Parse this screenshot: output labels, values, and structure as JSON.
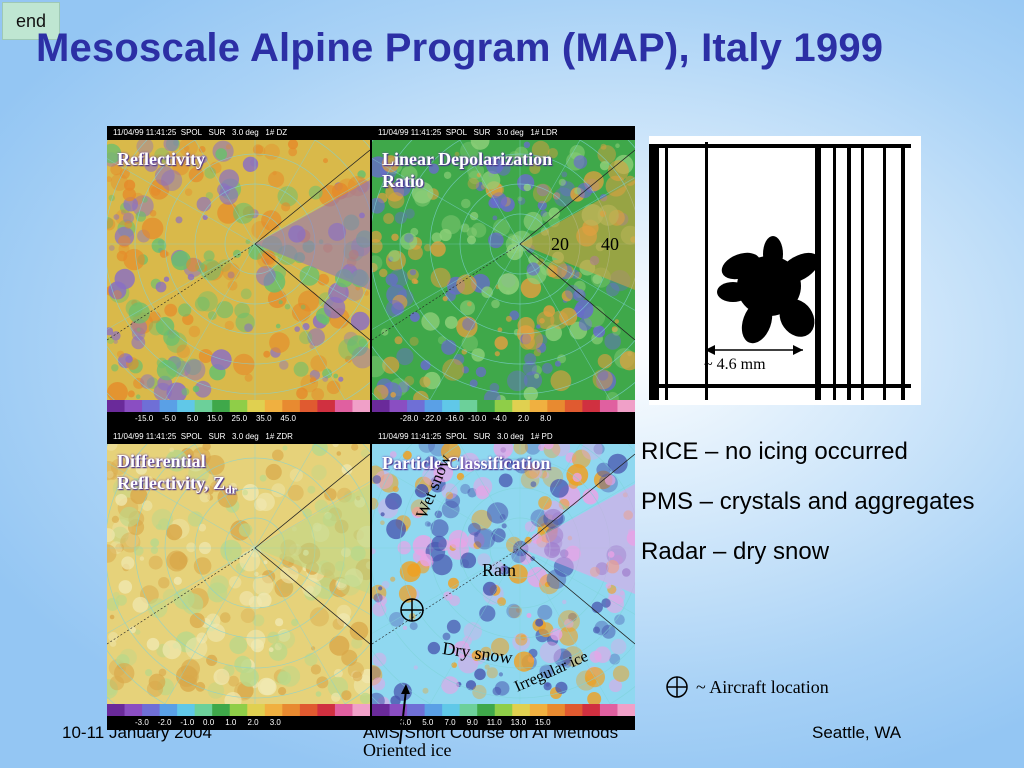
{
  "end_button": {
    "label": "end"
  },
  "title": "Mesoscale Alpine Program (MAP), Italy 1999",
  "panels": [
    {
      "header": "11/04/99 11:41:25  SPOL   SUR   3.0 deg   1# DZ",
      "label": "Reflectivity",
      "scale": "-15.0    -5.0     5.0    15.0    25.0    35.0    45.0",
      "base": "#d9b94a",
      "accent": "#e58a2a",
      "secondary": "#8a6fc4",
      "tertiary": "#67c06e"
    },
    {
      "header": "11/04/99 11:41:25  SPOL   SUR   3.0 deg   1# LDR",
      "label_line1": "Linear Depolarization",
      "label_line2": "Ratio",
      "scale": "-28.0  -22.0  -16.0  -10.0   -4.0     2.0     8.0",
      "base": "#3fa84a",
      "accent": "#6a6ad0",
      "secondary": "#e0a040",
      "tertiary": "#8fd07a"
    },
    {
      "header": "11/04/99 11:41:25  SPOL   SUR   3.0 deg   1# ZDR",
      "label_line1": "Differential",
      "label_line2": "Reflectivity, Z",
      "label_sub": "dr",
      "scale": "-3.0    -2.0    -1.0    0.0     1.0     2.0     3.0",
      "base": "#e6d27a",
      "accent": "#d9a84a",
      "secondary": "#b9d88a",
      "tertiary": "#f0e8b0"
    },
    {
      "header": "11/04/99 11:41:25  SPOL   SUR   3.0 deg   1# PD",
      "label": "Particle Classification",
      "scale": "3.0     5.0     7.0     9.0    11.0    13.0    15.0",
      "base": "#8fd8f0",
      "accent": "#f0a020",
      "secondary": "#e9a3e6",
      "tertiary": "#4a58b0"
    }
  ],
  "ldr_values": {
    "v1": "20",
    "v2": "40"
  },
  "classes": {
    "wet_snow": "Wet  snow",
    "rain": "Rain",
    "dry_snow": "Dry snow",
    "irregular_ice": "Irregular ice",
    "oriented_ice": "Oriented ice"
  },
  "snowflake": {
    "scale_label": "~ 4.6 mm"
  },
  "facts": [
    "RICE – no icing occurred",
    "PMS – crystals and aggregates",
    "Radar – dry snow"
  ],
  "legend": {
    "text": "~ Aircraft location"
  },
  "footer": {
    "date": "10-11 January 2004",
    "course": "AMS Short Course on AI Methods",
    "location": "Seattle, WA"
  },
  "colorbar_colors": [
    "#6a2a9a",
    "#8a4ec2",
    "#6f6fd6",
    "#5aa0e6",
    "#60c8e8",
    "#6cd09a",
    "#3fa84a",
    "#8fce48",
    "#e0d050",
    "#f0b040",
    "#e88a30",
    "#e05a30",
    "#d03040",
    "#e060a0",
    "#f0a0c8"
  ]
}
